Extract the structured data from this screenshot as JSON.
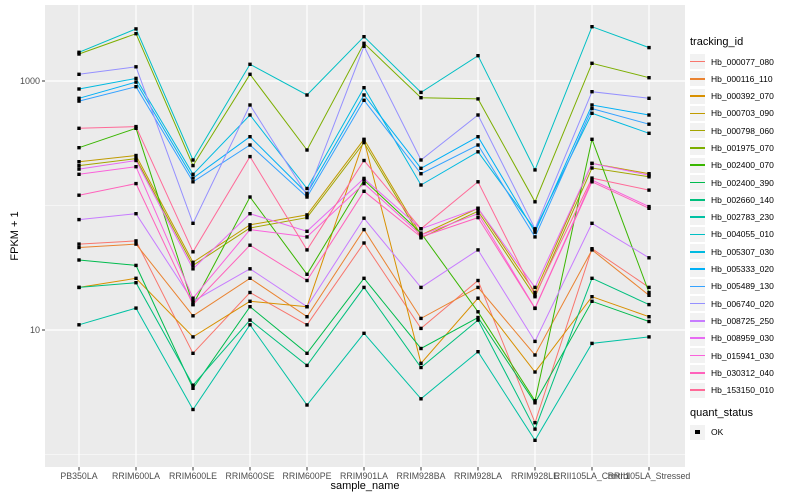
{
  "figure": {
    "background": "#FFFFFF",
    "panel_background": "#EBEBEB",
    "gridline_color": "#FFFFFF",
    "point_color": "#000000",
    "axis_text_color": "#4D4D4D",
    "tick_color": "#333333"
  },
  "legend": {
    "tracking_title": "tracking_id",
    "quant_title": "quant_status",
    "quant_items": [
      {
        "label": "OK",
        "symbol": "black-square-point"
      }
    ],
    "key_background": "#F2F2F2",
    "position": "right"
  },
  "chart_data": {
    "type": "line",
    "title": "",
    "xlabel": "sample_name",
    "ylabel": "FPKM + 1",
    "y_scale": "log10",
    "grid": "on",
    "legend_position": "right",
    "point_shape": "filled-square",
    "y_tick_values": [
      10,
      1000
    ],
    "y_tick_labels": [
      "10",
      "1000"
    ],
    "y_minor_gridlines": [
      1,
      100
    ],
    "ylim": [
      1,
      3900
    ],
    "categories": [
      "PB350LA",
      "RRIM600LA",
      "RRIM600LE",
      "RRIM600SE",
      "RRIM600PE",
      "RRIM901LA",
      "RRIM928BA",
      "RRIM928LA",
      "RRIM928LE",
      "RRII105LA_Control",
      "RRII105LA_Stressed"
    ],
    "series": [
      {
        "name": "Hb_000077_080",
        "color": "#F8766D",
        "values": [
          49,
          52,
          6.5,
          20,
          11,
          50,
          10.3,
          25,
          1.8,
          45,
          22
        ]
      },
      {
        "name": "Hb_000116_110",
        "color": "#EA8331",
        "values": [
          46,
          49,
          13,
          26,
          12.8,
          64,
          12.4,
          22,
          6.3,
          44,
          19
        ]
      },
      {
        "name": "Hb_000392_070",
        "color": "#D89000",
        "values": [
          22,
          26,
          8.8,
          17,
          15.4,
          336,
          5.4,
          18,
          4.6,
          18.5,
          12.8
        ]
      },
      {
        "name": "Hb_000703_090",
        "color": "#C09B00",
        "values": [
          225,
          252,
          35,
          70,
          84,
          340,
          58,
          95,
          20,
          218,
          180
        ]
      },
      {
        "name": "Hb_000798_060",
        "color": "#A3A500",
        "values": [
          209,
          238,
          33,
          66,
          80,
          320,
          55,
          90,
          18.5,
          200,
          170
        ]
      },
      {
        "name": "Hb_001975_070",
        "color": "#7CAE00",
        "values": [
          1648,
          2400,
          209,
          1132,
          279,
          2010,
          734,
          718,
          107,
          1387,
          1062
        ]
      },
      {
        "name": "Hb_002400_070",
        "color": "#39B600",
        "values": [
          291,
          417,
          16,
          117,
          28,
          160,
          60,
          14,
          2.7,
          340,
          20
        ]
      },
      {
        "name": "Hb_002400_390",
        "color": "#00BB4E",
        "values": [
          36.5,
          33,
          3.4,
          15.4,
          6.5,
          26,
          7.1,
          12.6,
          2.6,
          17,
          11.7
        ]
      },
      {
        "name": "Hb_002660_140",
        "color": "#00BF7D",
        "values": [
          22,
          24,
          3.6,
          12,
          5.2,
          22,
          5.0,
          12,
          1.6,
          26,
          16
        ]
      },
      {
        "name": "Hb_002783_230",
        "color": "#00C1A3",
        "values": [
          11,
          15,
          2.3,
          11,
          2.5,
          9.4,
          2.8,
          6.7,
          1.3,
          7.8,
          8.8
        ]
      },
      {
        "name": "Hb_004055_010",
        "color": "#00BFC4",
        "values": [
          1700,
          2620,
          232,
          1362,
          772,
          2270,
          810,
          1596,
          193,
          2730,
          1853
        ]
      },
      {
        "name": "Hb_005307_030",
        "color": "#00BAE0",
        "values": [
          863,
          1050,
          178,
          533,
          137,
          883,
          146,
          270,
          64,
          550,
          380
        ]
      },
      {
        "name": "Hb_005333_020",
        "color": "#00B0F6",
        "values": [
          726,
          980,
          166,
          357,
          125,
          772,
          199,
          357,
          61,
          641,
          533
        ]
      },
      {
        "name": "Hb_005489_130",
        "color": "#35A2FF",
        "values": [
          690,
          900,
          155,
          306,
          117,
          700,
          180,
          306,
          56,
          600,
          450
        ]
      },
      {
        "name": "Hb_006740_020",
        "color": "#9590FF",
        "values": [
          1132,
          1300,
          72,
          641,
          121,
          1900,
          232,
          533,
          65,
          820,
          726
        ]
      },
      {
        "name": "Hb_008725_250",
        "color": "#C77CFF",
        "values": [
          77,
          86,
          17,
          31,
          15.4,
          79,
          22,
          44,
          8.1,
          72,
          38
        ]
      },
      {
        "name": "Hb_008959_030",
        "color": "#E76BF3",
        "values": [
          196,
          230,
          31,
          86,
          62,
          165,
          65,
          95,
          22,
          218,
          175
        ]
      },
      {
        "name": "Hb_015941_030",
        "color": "#FA62DB",
        "values": [
          178,
          205,
          18,
          64,
          56,
          150,
          58,
          86,
          15,
          160,
          98
        ]
      },
      {
        "name": "Hb_030312_040",
        "color": "#FF62BC",
        "values": [
          121,
          150,
          16,
          48,
          25,
          130,
          56,
          80,
          14.9,
          155,
          95
        ]
      },
      {
        "name": "Hb_153150_010",
        "color": "#FF6A98",
        "values": [
          417,
          430,
          42.5,
          247,
          44,
          230,
          65,
          155,
          19,
          166,
          133
        ]
      }
    ]
  }
}
